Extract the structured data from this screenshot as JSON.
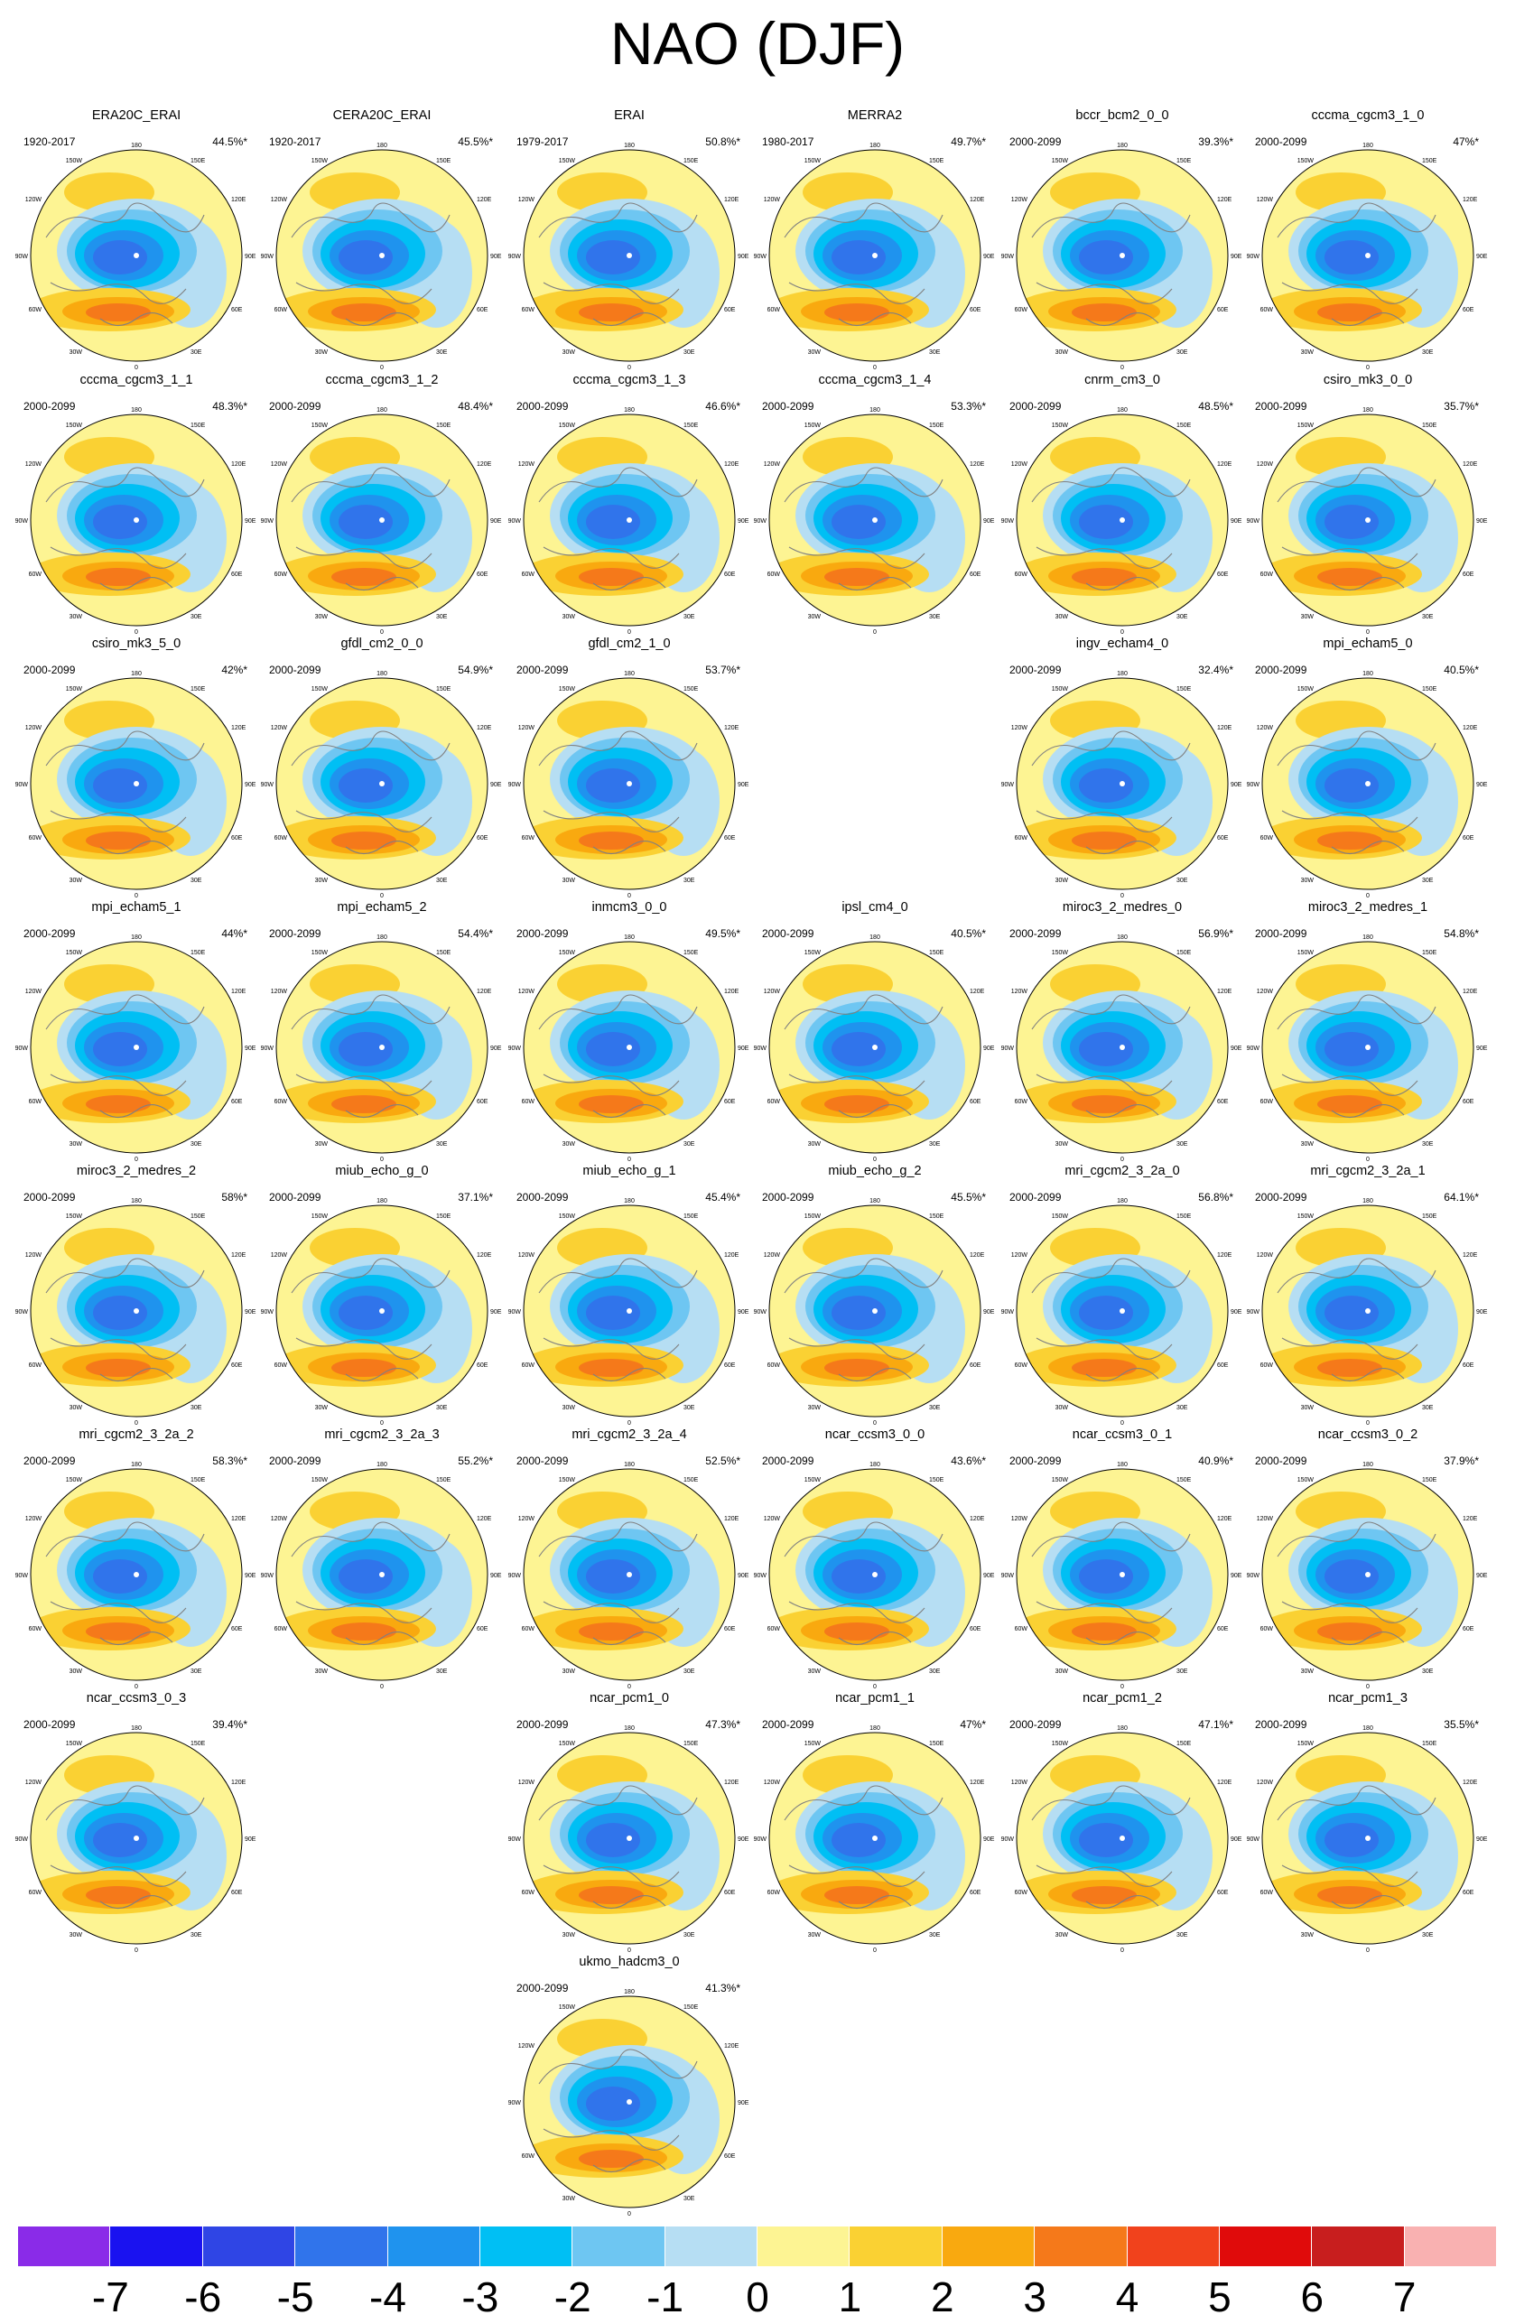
{
  "title": "NAO (DJF)",
  "panels": [
    {
      "name": "ERA20C_ERAI",
      "period": "1920-2017",
      "pct": "44.5%*",
      "row": 0,
      "col": 0
    },
    {
      "name": "CERA20C_ERAI",
      "period": "1920-2017",
      "pct": "45.5%*",
      "row": 0,
      "col": 1
    },
    {
      "name": "ERAI",
      "period": "1979-2017",
      "pct": "50.8%*",
      "row": 0,
      "col": 2
    },
    {
      "name": "MERRA2",
      "period": "1980-2017",
      "pct": "49.7%*",
      "row": 0,
      "col": 3
    },
    {
      "name": "bccr_bcm2_0_0",
      "period": "2000-2099",
      "pct": "39.3%*",
      "row": 0,
      "col": 4
    },
    {
      "name": "cccma_cgcm3_1_0",
      "period": "2000-2099",
      "pct": "47%*",
      "row": 0,
      "col": 5
    },
    {
      "name": "cccma_cgcm3_1_1",
      "period": "2000-2099",
      "pct": "48.3%*",
      "row": 1,
      "col": 0
    },
    {
      "name": "cccma_cgcm3_1_2",
      "period": "2000-2099",
      "pct": "48.4%*",
      "row": 1,
      "col": 1
    },
    {
      "name": "cccma_cgcm3_1_3",
      "period": "2000-2099",
      "pct": "46.6%*",
      "row": 1,
      "col": 2
    },
    {
      "name": "cccma_cgcm3_1_4",
      "period": "2000-2099",
      "pct": "53.3%*",
      "row": 1,
      "col": 3
    },
    {
      "name": "cnrm_cm3_0",
      "period": "2000-2099",
      "pct": "48.5%*",
      "row": 1,
      "col": 4
    },
    {
      "name": "csiro_mk3_0_0",
      "period": "2000-2099",
      "pct": "35.7%*",
      "row": 1,
      "col": 5
    },
    {
      "name": "csiro_mk3_5_0",
      "period": "2000-2099",
      "pct": "42%*",
      "row": 2,
      "col": 0
    },
    {
      "name": "gfdl_cm2_0_0",
      "period": "2000-2099",
      "pct": "54.9%*",
      "row": 2,
      "col": 1
    },
    {
      "name": "gfdl_cm2_1_0",
      "period": "2000-2099",
      "pct": "53.7%*",
      "row": 2,
      "col": 2
    },
    {
      "name": "ingv_echam4_0",
      "period": "2000-2099",
      "pct": "32.4%*",
      "row": 2,
      "col": 4
    },
    {
      "name": "mpi_echam5_0",
      "period": "2000-2099",
      "pct": "40.5%*",
      "row": 2,
      "col": 5
    },
    {
      "name": "mpi_echam5_1",
      "period": "2000-2099",
      "pct": "44%*",
      "row": 3,
      "col": 0
    },
    {
      "name": "mpi_echam5_2",
      "period": "2000-2099",
      "pct": "54.4%*",
      "row": 3,
      "col": 1
    },
    {
      "name": "inmcm3_0_0",
      "period": "2000-2099",
      "pct": "49.5%*",
      "row": 3,
      "col": 2
    },
    {
      "name": "ipsl_cm4_0",
      "period": "2000-2099",
      "pct": "40.5%*",
      "row": 3,
      "col": 3
    },
    {
      "name": "miroc3_2_medres_0",
      "period": "2000-2099",
      "pct": "56.9%*",
      "row": 3,
      "col": 4
    },
    {
      "name": "miroc3_2_medres_1",
      "period": "2000-2099",
      "pct": "54.8%*",
      "row": 3,
      "col": 5
    },
    {
      "name": "miroc3_2_medres_2",
      "period": "2000-2099",
      "pct": "58%*",
      "row": 4,
      "col": 0
    },
    {
      "name": "miub_echo_g_0",
      "period": "2000-2099",
      "pct": "37.1%*",
      "row": 4,
      "col": 1
    },
    {
      "name": "miub_echo_g_1",
      "period": "2000-2099",
      "pct": "45.4%*",
      "row": 4,
      "col": 2
    },
    {
      "name": "miub_echo_g_2",
      "period": "2000-2099",
      "pct": "45.5%*",
      "row": 4,
      "col": 3
    },
    {
      "name": "mri_cgcm2_3_2a_0",
      "period": "2000-2099",
      "pct": "56.8%*",
      "row": 4,
      "col": 4
    },
    {
      "name": "mri_cgcm2_3_2a_1",
      "period": "2000-2099",
      "pct": "64.1%*",
      "row": 4,
      "col": 5
    },
    {
      "name": "mri_cgcm2_3_2a_2",
      "period": "2000-2099",
      "pct": "58.3%*",
      "row": 5,
      "col": 0
    },
    {
      "name": "mri_cgcm2_3_2a_3",
      "period": "2000-2099",
      "pct": "55.2%*",
      "row": 5,
      "col": 1
    },
    {
      "name": "mri_cgcm2_3_2a_4",
      "period": "2000-2099",
      "pct": "52.5%*",
      "row": 5,
      "col": 2
    },
    {
      "name": "ncar_ccsm3_0_0",
      "period": "2000-2099",
      "pct": "43.6%*",
      "row": 5,
      "col": 3
    },
    {
      "name": "ncar_ccsm3_0_1",
      "period": "2000-2099",
      "pct": "40.9%*",
      "row": 5,
      "col": 4
    },
    {
      "name": "ncar_ccsm3_0_2",
      "period": "2000-2099",
      "pct": "37.9%*",
      "row": 5,
      "col": 5
    },
    {
      "name": "ncar_ccsm3_0_3",
      "period": "2000-2099",
      "pct": "39.4%*",
      "row": 6,
      "col": 0
    },
    {
      "name": "ncar_pcm1_0",
      "period": "2000-2099",
      "pct": "47.3%*",
      "row": 6,
      "col": 2
    },
    {
      "name": "ncar_pcm1_1",
      "period": "2000-2099",
      "pct": "47%*",
      "row": 6,
      "col": 3
    },
    {
      "name": "ncar_pcm1_2",
      "period": "2000-2099",
      "pct": "47.1%*",
      "row": 6,
      "col": 4
    },
    {
      "name": "ncar_pcm1_3",
      "period": "2000-2099",
      "pct": "35.5%*",
      "row": 6,
      "col": 5
    },
    {
      "name": "ukmo_hadcm3_0",
      "period": "2000-2099",
      "pct": "41.3%*",
      "row": 7,
      "col": 2
    }
  ],
  "map_labels": {
    "top": "180",
    "upper_left": "150W",
    "upper_right": "150E",
    "mid_left": "120W",
    "mid_right": "120E",
    "left": "90W",
    "right": "90E",
    "lower_mid_left": "60W",
    "lower_mid_right": "60E",
    "lower_left": "30W",
    "lower_right": "30E",
    "bottom": "0"
  },
  "colorbar": {
    "colors": [
      "#8a2be8",
      "#1a12f0",
      "#2f45e5",
      "#3074eb",
      "#1f93ee",
      "#00bff4",
      "#6ec6f2",
      "#b6def3",
      "#fdf493",
      "#fad133",
      "#f9a90f",
      "#f5791a",
      "#f1421c",
      "#e00b0b",
      "#c81e1e",
      "#f9b1b1"
    ],
    "ticks": [
      "-7",
      "-6",
      "-5",
      "-4",
      "-3",
      "-2",
      "-1",
      "0",
      "1",
      "2",
      "3",
      "4",
      "5",
      "6",
      "7"
    ]
  }
}
